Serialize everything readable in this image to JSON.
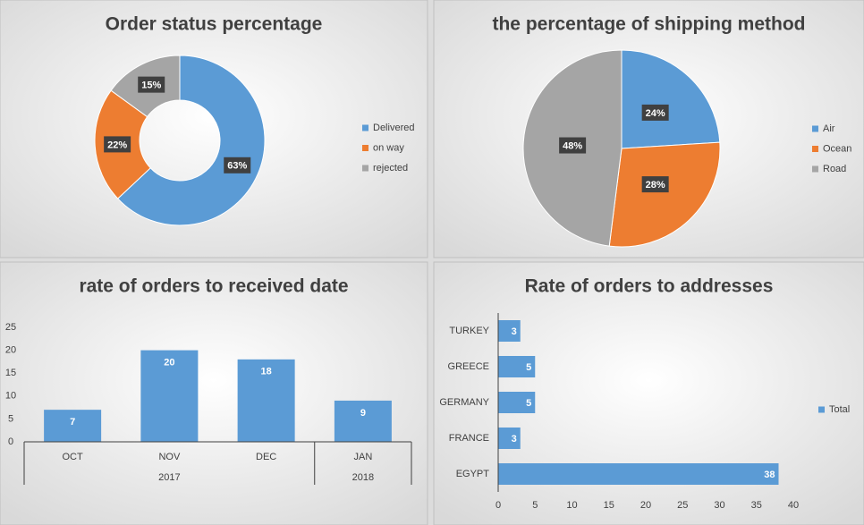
{
  "chart_data": [
    {
      "type": "donut",
      "title": "Order status percentage",
      "categories": [
        "Delivered",
        "on way",
        "rejected"
      ],
      "values": [
        63,
        22,
        15
      ],
      "value_labels": [
        "63%",
        "22%",
        "15%"
      ],
      "colors": [
        "#5b9bd5",
        "#ed7d31",
        "#a5a5a5"
      ],
      "legend": "right"
    },
    {
      "type": "pie",
      "title": "the percentage of shipping method",
      "categories": [
        "Air",
        "Ocean",
        "Road"
      ],
      "values": [
        24,
        28,
        48
      ],
      "value_labels": [
        "24%",
        "28%",
        "48%"
      ],
      "colors": [
        "#5b9bd5",
        "#ed7d31",
        "#a5a5a5"
      ],
      "legend": "right"
    },
    {
      "type": "bar",
      "title": "rate of orders to received date",
      "categories": [
        "OCT",
        "NOV",
        "DEC",
        "JAN"
      ],
      "category_groups": [
        "2017",
        "2017",
        "2017",
        "2018"
      ],
      "values": [
        7,
        20,
        18,
        9
      ],
      "color": "#5b9bd5",
      "ylim": [
        0,
        25
      ],
      "yticks": [
        0,
        5,
        10,
        15,
        20,
        25
      ]
    },
    {
      "type": "hbar",
      "title": "Rate of orders to addresses",
      "categories": [
        "EGYPT",
        "FRANCE",
        "GERMANY",
        "GREECE",
        "TURKEY"
      ],
      "series": [
        {
          "name": "Total",
          "color": "#5b9bd5",
          "values": [
            38,
            3,
            5,
            5,
            3
          ]
        }
      ],
      "xlim": [
        0,
        40
      ],
      "xticks": [
        0,
        5,
        10,
        15,
        20,
        25,
        30,
        35,
        40
      ],
      "legend": "right"
    }
  ]
}
